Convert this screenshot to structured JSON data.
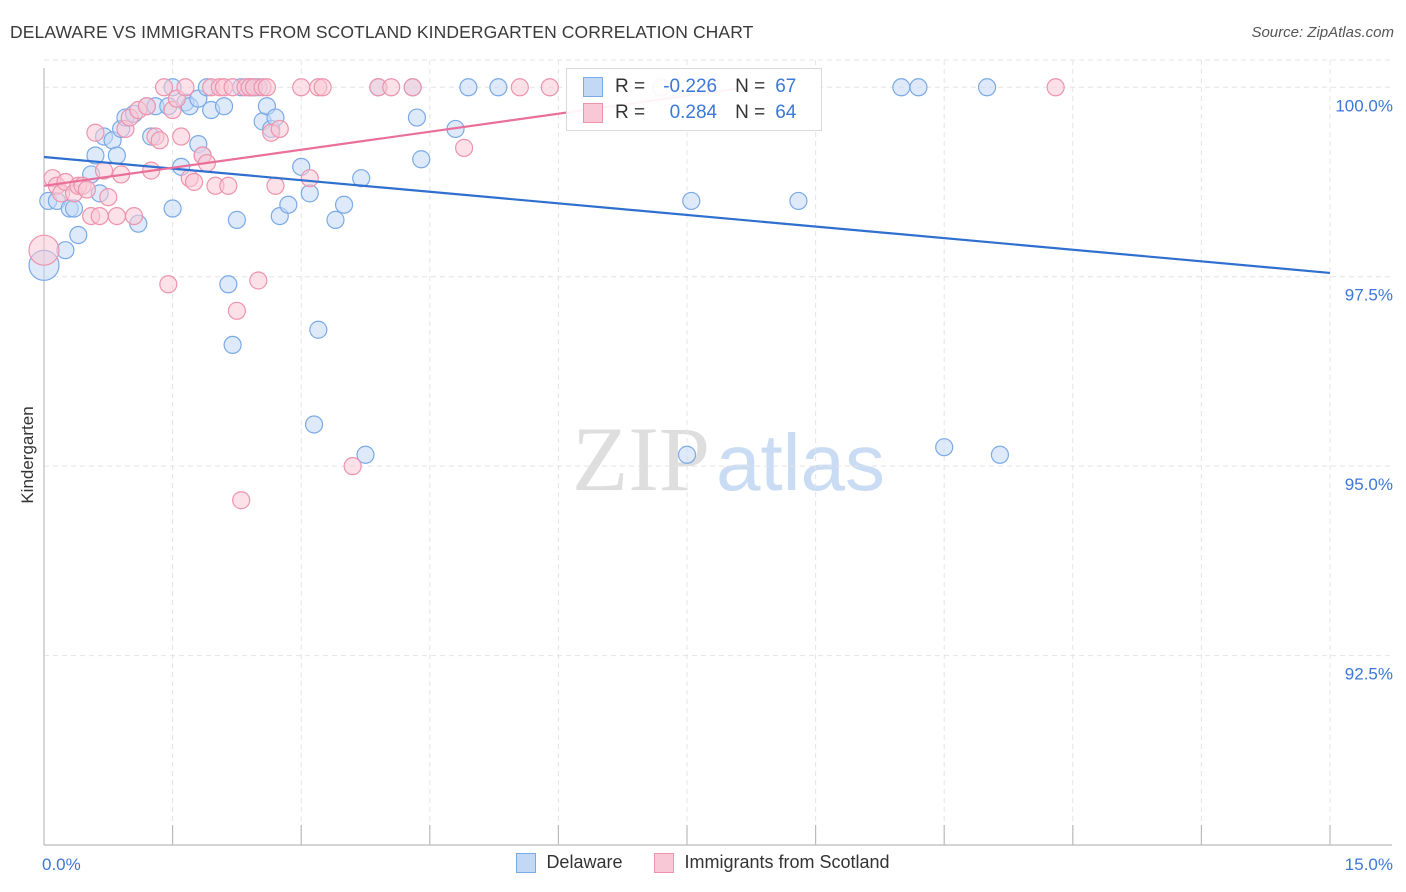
{
  "header": {
    "title": "DELAWARE VS IMMIGRANTS FROM SCOTLAND KINDERGARTEN CORRELATION CHART",
    "source": "Source: ZipAtlas.com"
  },
  "watermark": {
    "zip": "ZIP",
    "atlas": "atlas"
  },
  "legend_top": {
    "rows": [
      {
        "r_label": "R =",
        "r_value": "-0.226",
        "n_label": "N =",
        "n_value": "67"
      },
      {
        "r_label": "R =",
        "r_value": "0.284",
        "n_label": "N =",
        "n_value": "64"
      }
    ]
  },
  "legend_bottom": {
    "items": [
      {
        "label": "Delaware"
      },
      {
        "label": "Immigrants from Scotland"
      }
    ]
  },
  "colors": {
    "blue_fill": "#c2d8f5",
    "blue_stroke": "#7aaae6",
    "blue_line": "#2f6fcf",
    "pink_fill": "#f9c8d6",
    "pink_stroke": "#ee93ad",
    "pink_line": "#e8709a",
    "tick_label": "#3b78d8",
    "grid": "#e4e4e4"
  },
  "chart_data": {
    "type": "scatter",
    "title": "DELAWARE VS IMMIGRANTS FROM SCOTLAND KINDERGARTEN CORRELATION CHART",
    "xlabel": "",
    "ylabel": "Kindergarten",
    "xlim": [
      0,
      15
    ],
    "ylim": [
      90.0,
      100.36
    ],
    "x_tick_labels": [
      "0.0%",
      "15.0%"
    ],
    "y_ticks": [
      100.0,
      97.5,
      95.0,
      92.5
    ],
    "y_tick_labels": [
      "100.0%",
      "97.5%",
      "95.0%",
      "92.5%"
    ],
    "grid": true,
    "legend_position": "top-center",
    "series": [
      {
        "name": "Delaware",
        "color": "#7aaae6",
        "trendline": {
          "x": [
            0.0,
            15.0
          ],
          "y": [
            99.08,
            97.55
          ]
        },
        "points": [
          [
            0.0,
            97.65
          ],
          [
            0.05,
            98.5
          ],
          [
            0.15,
            98.5
          ],
          [
            0.25,
            97.85
          ],
          [
            0.3,
            98.4
          ],
          [
            0.35,
            98.4
          ],
          [
            0.4,
            98.05
          ],
          [
            0.55,
            98.85
          ],
          [
            0.65,
            98.6
          ],
          [
            0.6,
            99.1
          ],
          [
            0.7,
            99.35
          ],
          [
            0.8,
            99.3
          ],
          [
            0.85,
            99.1
          ],
          [
            0.9,
            99.45
          ],
          [
            0.95,
            99.6
          ],
          [
            1.05,
            99.65
          ],
          [
            1.1,
            98.2
          ],
          [
            1.2,
            99.75
          ],
          [
            1.25,
            99.35
          ],
          [
            1.3,
            99.75
          ],
          [
            1.45,
            99.75
          ],
          [
            1.5,
            100.0
          ],
          [
            1.5,
            98.4
          ],
          [
            1.6,
            98.95
          ],
          [
            1.65,
            99.8
          ],
          [
            1.7,
            99.75
          ],
          [
            1.8,
            99.85
          ],
          [
            1.8,
            99.25
          ],
          [
            1.85,
            99.1
          ],
          [
            1.9,
            100.0
          ],
          [
            1.95,
            99.7
          ],
          [
            2.1,
            99.75
          ],
          [
            2.15,
            97.4
          ],
          [
            2.2,
            96.6
          ],
          [
            2.25,
            98.25
          ],
          [
            2.3,
            100.0
          ],
          [
            2.4,
            100.0
          ],
          [
            2.45,
            100.0
          ],
          [
            2.5,
            100.0
          ],
          [
            2.55,
            99.55
          ],
          [
            2.6,
            99.75
          ],
          [
            2.65,
            99.45
          ],
          [
            2.7,
            99.6
          ],
          [
            2.75,
            98.3
          ],
          [
            2.85,
            98.45
          ],
          [
            3.0,
            98.95
          ],
          [
            3.1,
            98.6
          ],
          [
            3.15,
            95.55
          ],
          [
            3.2,
            96.8
          ],
          [
            3.4,
            98.25
          ],
          [
            3.5,
            98.45
          ],
          [
            3.7,
            98.8
          ],
          [
            3.75,
            95.15
          ],
          [
            3.9,
            100.0
          ],
          [
            4.3,
            100.0
          ],
          [
            4.35,
            99.6
          ],
          [
            4.4,
            99.05
          ],
          [
            4.8,
            99.45
          ],
          [
            4.95,
            100.0
          ],
          [
            5.3,
            100.0
          ],
          [
            7.5,
            95.15
          ],
          [
            7.55,
            98.5
          ],
          [
            8.8,
            98.5
          ],
          [
            10.0,
            100.0
          ],
          [
            10.2,
            100.0
          ],
          [
            10.5,
            95.25
          ],
          [
            11.0,
            100.0
          ],
          [
            11.15,
            95.15
          ]
        ]
      },
      {
        "name": "Immigrants from Scotland",
        "color": "#ee93ad",
        "trendline": {
          "x": [
            0.0,
            8.2
          ],
          "y": [
            98.7,
            100.0
          ]
        },
        "points": [
          [
            0.0,
            97.85
          ],
          [
            0.1,
            98.8
          ],
          [
            0.15,
            98.7
          ],
          [
            0.2,
            98.6
          ],
          [
            0.25,
            98.75
          ],
          [
            0.35,
            98.6
          ],
          [
            0.4,
            98.7
          ],
          [
            0.45,
            98.7
          ],
          [
            0.5,
            98.65
          ],
          [
            0.55,
            98.3
          ],
          [
            0.6,
            99.4
          ],
          [
            0.65,
            98.3
          ],
          [
            0.7,
            98.9
          ],
          [
            0.75,
            98.55
          ],
          [
            0.85,
            98.3
          ],
          [
            0.9,
            98.85
          ],
          [
            0.95,
            99.45
          ],
          [
            1.0,
            99.6
          ],
          [
            1.05,
            98.3
          ],
          [
            1.1,
            99.7
          ],
          [
            1.2,
            99.75
          ],
          [
            1.25,
            98.9
          ],
          [
            1.3,
            99.35
          ],
          [
            1.35,
            99.3
          ],
          [
            1.4,
            100.0
          ],
          [
            1.45,
            97.4
          ],
          [
            1.5,
            99.7
          ],
          [
            1.55,
            99.85
          ],
          [
            1.6,
            99.35
          ],
          [
            1.65,
            100.0
          ],
          [
            1.7,
            98.8
          ],
          [
            1.75,
            98.75
          ],
          [
            1.85,
            99.1
          ],
          [
            1.9,
            99.0
          ],
          [
            1.95,
            100.0
          ],
          [
            2.0,
            98.7
          ],
          [
            2.05,
            100.0
          ],
          [
            2.1,
            100.0
          ],
          [
            2.15,
            98.7
          ],
          [
            2.2,
            100.0
          ],
          [
            2.25,
            97.05
          ],
          [
            2.3,
            94.55
          ],
          [
            2.35,
            100.0
          ],
          [
            2.4,
            100.0
          ],
          [
            2.45,
            100.0
          ],
          [
            2.5,
            97.45
          ],
          [
            2.55,
            100.0
          ],
          [
            2.6,
            100.0
          ],
          [
            2.65,
            99.4
          ],
          [
            2.7,
            98.7
          ],
          [
            2.75,
            99.45
          ],
          [
            3.0,
            100.0
          ],
          [
            3.1,
            98.8
          ],
          [
            3.2,
            100.0
          ],
          [
            3.25,
            100.0
          ],
          [
            3.6,
            95.0
          ],
          [
            3.9,
            100.0
          ],
          [
            4.05,
            100.0
          ],
          [
            4.3,
            100.0
          ],
          [
            4.9,
            99.2
          ],
          [
            5.55,
            100.0
          ],
          [
            5.9,
            100.0
          ],
          [
            7.2,
            100.0
          ],
          [
            11.8,
            100.0
          ]
        ]
      }
    ]
  }
}
